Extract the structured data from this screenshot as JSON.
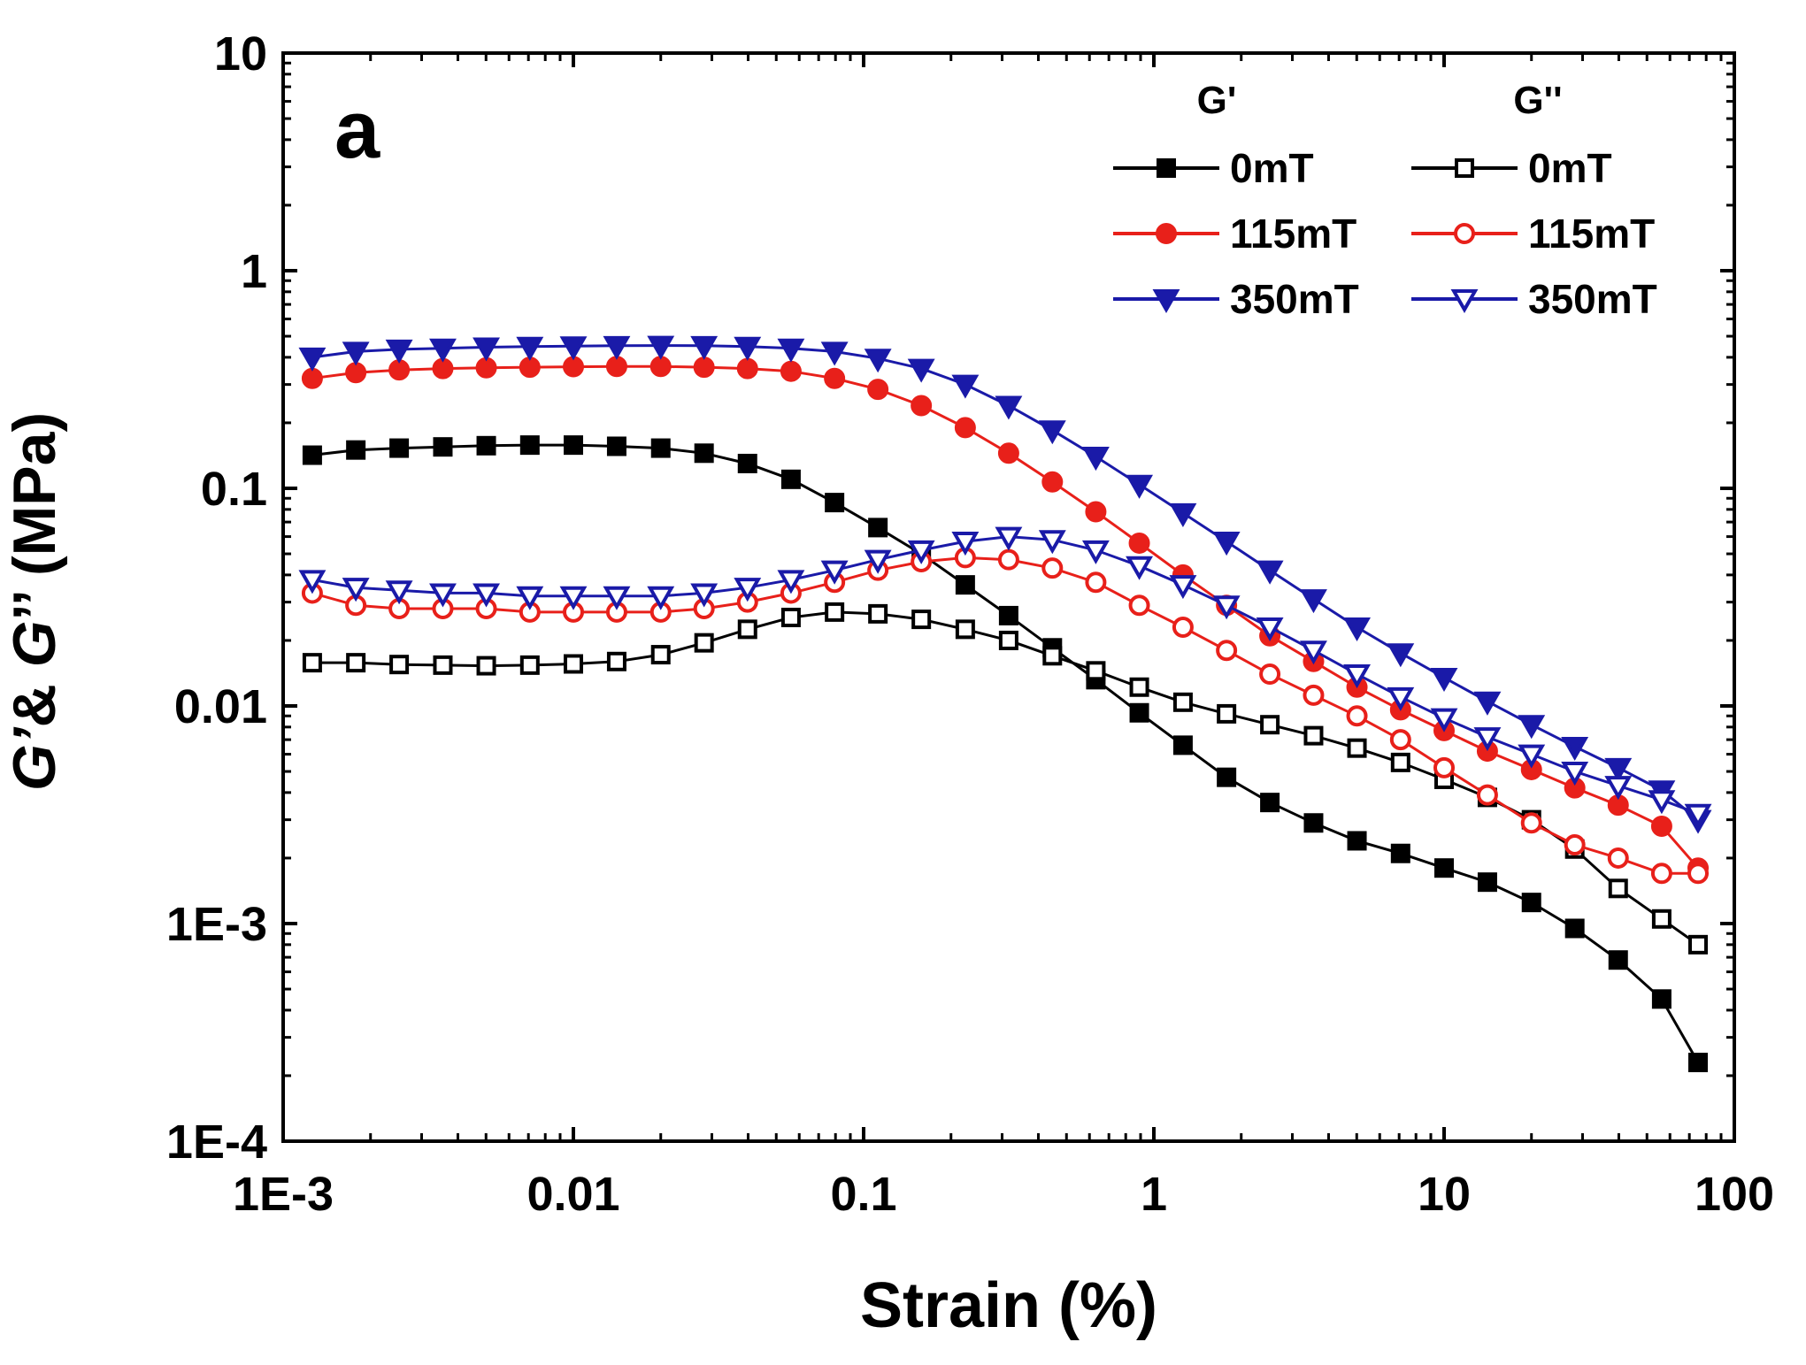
{
  "chart_data": {
    "type": "line",
    "panel_label": "a",
    "xlabel": "Strain (%)",
    "ylabel_parts": [
      "G’",
      "& ",
      "G",
      "’’ (MPa)"
    ],
    "x_scale": "log",
    "y_scale": "log",
    "xlim": [
      0.001,
      100
    ],
    "ylim": [
      0.0001,
      10
    ],
    "x_ticks": [
      0.001,
      0.01,
      0.1,
      1,
      10,
      100
    ],
    "x_tick_labels": [
      "1E-3",
      "0.01",
      "0.1",
      "1",
      "10",
      "100"
    ],
    "y_ticks": [
      0.0001,
      0.001,
      0.01,
      0.1,
      1,
      10
    ],
    "y_tick_labels": [
      "1E-4",
      "1E-3",
      "0.01",
      "0.1",
      "1",
      "10"
    ],
    "grid": false,
    "legend": {
      "position": "top-right",
      "column_titles": [
        "G'",
        "G''"
      ]
    },
    "x": [
      0.00126,
      0.00178,
      0.00251,
      0.00355,
      0.00501,
      0.00708,
      0.01,
      0.0141,
      0.02,
      0.0282,
      0.0398,
      0.0562,
      0.0794,
      0.112,
      0.158,
      0.224,
      0.316,
      0.447,
      0.631,
      0.891,
      1.26,
      1.78,
      2.51,
      3.55,
      5.01,
      7.08,
      10,
      14.1,
      20,
      28.2,
      39.8,
      56.2,
      75
    ],
    "series": [
      {
        "name": "0mT",
        "group": "G'",
        "color": "#000000",
        "marker": "square",
        "filled": true,
        "values": [
          0.142,
          0.15,
          0.153,
          0.155,
          0.157,
          0.158,
          0.158,
          0.156,
          0.153,
          0.145,
          0.13,
          0.11,
          0.086,
          0.066,
          0.05,
          0.036,
          0.026,
          0.0185,
          0.0132,
          0.0093,
          0.0066,
          0.0047,
          0.0036,
          0.0029,
          0.0024,
          0.0021,
          0.0018,
          0.00155,
          0.00125,
          0.00095,
          0.00068,
          0.00045,
          0.00023
        ]
      },
      {
        "name": "115mT",
        "group": "G'",
        "color": "#e8201a",
        "marker": "circle",
        "filled": true,
        "values": [
          0.32,
          0.34,
          0.35,
          0.355,
          0.358,
          0.36,
          0.362,
          0.363,
          0.363,
          0.36,
          0.355,
          0.345,
          0.32,
          0.285,
          0.24,
          0.19,
          0.145,
          0.107,
          0.078,
          0.056,
          0.04,
          0.029,
          0.021,
          0.016,
          0.0122,
          0.0096,
          0.0077,
          0.0062,
          0.0051,
          0.0042,
          0.0035,
          0.0028,
          0.0018
        ]
      },
      {
        "name": "350mT",
        "group": "G'",
        "color": "#1a1aa8",
        "marker": "triangle-down",
        "filled": true,
        "values": [
          0.4,
          0.425,
          0.435,
          0.44,
          0.445,
          0.448,
          0.45,
          0.452,
          0.453,
          0.452,
          0.448,
          0.44,
          0.425,
          0.395,
          0.355,
          0.3,
          0.24,
          0.185,
          0.14,
          0.104,
          0.077,
          0.057,
          0.042,
          0.031,
          0.023,
          0.0175,
          0.0135,
          0.0105,
          0.0082,
          0.0065,
          0.0052,
          0.0041,
          0.003
        ]
      },
      {
        "name": "0mT",
        "group": "G''",
        "color": "#000000",
        "marker": "square",
        "filled": false,
        "values": [
          0.0158,
          0.0158,
          0.0155,
          0.0154,
          0.0153,
          0.0154,
          0.0156,
          0.016,
          0.0172,
          0.0195,
          0.0225,
          0.0255,
          0.027,
          0.0265,
          0.025,
          0.0225,
          0.02,
          0.017,
          0.0145,
          0.0122,
          0.0104,
          0.0092,
          0.0082,
          0.0073,
          0.0064,
          0.0055,
          0.0046,
          0.0038,
          0.003,
          0.0022,
          0.00145,
          0.00105,
          0.0008
        ]
      },
      {
        "name": "115mT",
        "group": "G''",
        "color": "#e8201a",
        "marker": "circle",
        "filled": false,
        "values": [
          0.033,
          0.029,
          0.028,
          0.028,
          0.028,
          0.027,
          0.027,
          0.027,
          0.027,
          0.028,
          0.03,
          0.033,
          0.037,
          0.042,
          0.046,
          0.048,
          0.047,
          0.043,
          0.037,
          0.029,
          0.023,
          0.018,
          0.014,
          0.0112,
          0.009,
          0.007,
          0.0052,
          0.0039,
          0.0029,
          0.0023,
          0.002,
          0.0017,
          0.0017
        ]
      },
      {
        "name": "350mT",
        "group": "G''",
        "color": "#1a1aa8",
        "marker": "triangle-down",
        "filled": false,
        "values": [
          0.038,
          0.035,
          0.034,
          0.033,
          0.033,
          0.032,
          0.032,
          0.032,
          0.032,
          0.033,
          0.035,
          0.038,
          0.042,
          0.047,
          0.052,
          0.057,
          0.06,
          0.058,
          0.052,
          0.044,
          0.036,
          0.029,
          0.023,
          0.018,
          0.014,
          0.011,
          0.0088,
          0.0072,
          0.006,
          0.005,
          0.0043,
          0.0037,
          0.0032
        ]
      }
    ]
  }
}
